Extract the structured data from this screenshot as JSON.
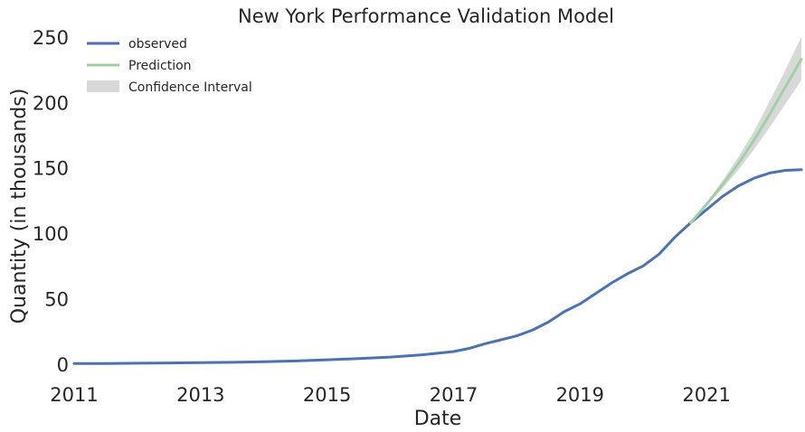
{
  "chart_data": {
    "type": "line",
    "title": "New York Performance Validation Model",
    "xlabel": "Date",
    "ylabel": "Quantity (in thousands)",
    "xlim": [
      "2011-01",
      "2022-07"
    ],
    "ylim": [
      -5,
      252
    ],
    "x_ticks": [
      "2011",
      "2013",
      "2015",
      "2017",
      "2019",
      "2021"
    ],
    "y_ticks": [
      0,
      50,
      100,
      150,
      200,
      250
    ],
    "grid": false,
    "legend_position": "top-left",
    "legend": {
      "observed": "observed",
      "prediction": "Prediction",
      "interval": "Confidence Interval"
    },
    "colors": {
      "observed": "#4c72b0",
      "prediction": "#a1d0a4",
      "interval": "#d8d8d8",
      "text": "#262626"
    },
    "series": [
      {
        "name": "observed",
        "x": [
          "2011-01",
          "2011-07",
          "2012-01",
          "2012-07",
          "2013-01",
          "2013-07",
          "2014-01",
          "2014-07",
          "2015-01",
          "2015-07",
          "2016-01",
          "2016-07",
          "2017-01",
          "2017-04",
          "2017-07",
          "2017-10",
          "2018-01",
          "2018-04",
          "2018-07",
          "2018-10",
          "2019-01",
          "2019-04",
          "2019-07",
          "2019-10",
          "2020-01",
          "2020-04",
          "2020-07",
          "2020-10",
          "2021-01",
          "2021-04",
          "2021-07",
          "2021-10",
          "2022-01",
          "2022-04",
          "2022-07"
        ],
        "values": [
          0.3,
          0.4,
          0.6,
          0.8,
          1.0,
          1.3,
          1.7,
          2.3,
          3.2,
          4.2,
          5.3,
          7.0,
          9.5,
          12.0,
          15.5,
          18.5,
          21.5,
          26.0,
          32.0,
          40.0,
          46.0,
          54.0,
          62.0,
          69.0,
          75.0,
          84.0,
          97.0,
          108.0,
          118.0,
          128.0,
          136.0,
          142.0,
          146.0,
          148.0,
          148.5
        ]
      },
      {
        "name": "Prediction",
        "x": [
          "2020-10",
          "2021-01",
          "2021-04",
          "2021-07",
          "2021-10",
          "2022-01",
          "2022-04",
          "2022-07"
        ],
        "values": [
          108,
          122,
          137,
          153,
          171,
          191,
          212,
          233
        ],
        "lower": [
          108,
          121,
          134,
          148,
          164,
          181,
          199,
          217
        ],
        "upper": [
          108,
          123,
          140,
          158,
          178,
          201,
          225,
          250
        ]
      }
    ]
  }
}
